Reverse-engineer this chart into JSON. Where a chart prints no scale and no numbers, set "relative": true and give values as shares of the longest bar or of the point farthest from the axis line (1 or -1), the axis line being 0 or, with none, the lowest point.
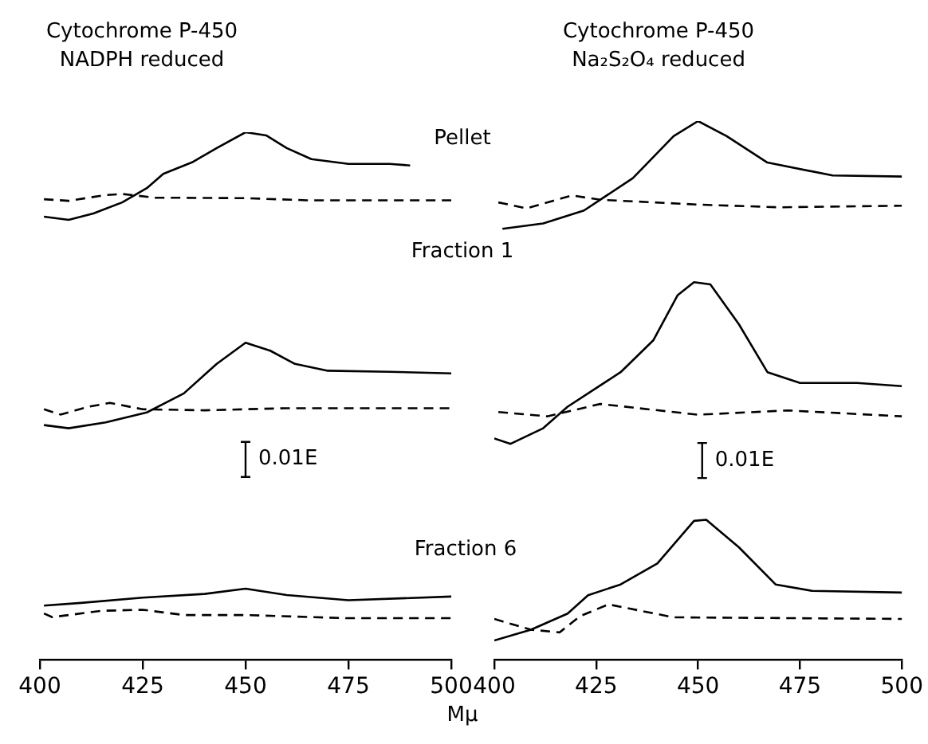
{
  "chart_data": [
    {
      "type": "line",
      "title": "Cytochrome P-450\nNADPH reduced",
      "xlabel": "Mμ",
      "relative": true,
      "xlim": [
        400,
        500
      ],
      "xticks": [
        400,
        425,
        450,
        475,
        500
      ],
      "grid": false,
      "legend": false,
      "marker": "none",
      "tick_labels": "x",
      "annotations": [
        "Pellet",
        "Fraction 1",
        "Fraction 6",
        "0.01E"
      ],
      "series": [
        {
          "color": "#000000",
          "line_style": "solid",
          "x": [
            401,
            407,
            413,
            420,
            426,
            430,
            437,
            443,
            450,
            455,
            460,
            466,
            475,
            485,
            490
          ],
          "values": [
            0.84,
            0.834,
            0.846,
            0.867,
            0.894,
            0.921,
            0.943,
            0.97,
            1.0,
            0.994,
            0.97,
            0.949,
            0.94,
            0.94,
            0.937
          ]
        },
        {
          "color": "#000000",
          "line_style": "dashed",
          "x": [
            401,
            407,
            416,
            420,
            428,
            450,
            465,
            500
          ],
          "values": [
            0.873,
            0.87,
            0.881,
            0.883,
            0.876,
            0.875,
            0.871,
            0.871
          ]
        },
        {
          "color": "#000000",
          "line_style": "solid",
          "x": [
            401,
            407,
            416,
            426,
            435,
            443,
            450,
            456,
            462,
            470,
            485,
            500
          ],
          "values": [
            0.445,
            0.439,
            0.45,
            0.469,
            0.505,
            0.561,
            0.601,
            0.586,
            0.561,
            0.548,
            0.546,
            0.543
          ]
        },
        {
          "color": "#000000",
          "line_style": "dashed",
          "x": [
            401,
            405,
            412,
            417,
            425,
            440,
            460,
            500
          ],
          "values": [
            0.475,
            0.465,
            0.48,
            0.487,
            0.475,
            0.473,
            0.477,
            0.477
          ]
        },
        {
          "color": "#000000",
          "line_style": "solid",
          "x": [
            401,
            410,
            425,
            440,
            450,
            460,
            475,
            500
          ],
          "values": [
            0.103,
            0.108,
            0.118,
            0.125,
            0.135,
            0.123,
            0.113,
            0.12
          ]
        },
        {
          "color": "#000000",
          "line_style": "dashed",
          "x": [
            401,
            403,
            415,
            425,
            435,
            450,
            475,
            500
          ],
          "values": [
            0.088,
            0.081,
            0.093,
            0.095,
            0.085,
            0.085,
            0.079,
            0.079
          ]
        }
      ]
    },
    {
      "type": "line",
      "title": "Cytochrome P-450\nNa₂S₂O₄ reduced",
      "relative": true,
      "xlim": [
        400,
        500
      ],
      "xticks": [
        400,
        425,
        450,
        475,
        500
      ],
      "grid": false,
      "legend": false,
      "marker": "none",
      "tick_labels": "x",
      "annotations": [
        "0.01E"
      ],
      "series": [
        {
          "color": "#000000",
          "line_style": "solid",
          "x": [
            402,
            412,
            422,
            434,
            444,
            450,
            457,
            467,
            483,
            500
          ],
          "values": [
            0.8,
            0.81,
            0.834,
            0.894,
            0.972,
            1.0,
            0.972,
            0.923,
            0.899,
            0.897
          ]
        },
        {
          "color": "#000000",
          "line_style": "dashed",
          "x": [
            401,
            408,
            419,
            426,
            450,
            470,
            500
          ],
          "values": [
            0.849,
            0.838,
            0.862,
            0.854,
            0.845,
            0.84,
            0.843
          ]
        },
        {
          "color": "#000000",
          "line_style": "solid",
          "x": [
            400,
            404,
            412,
            418,
            431,
            439,
            445,
            449,
            453,
            460,
            467,
            475,
            489,
            500
          ],
          "values": [
            0.411,
            0.401,
            0.43,
            0.47,
            0.534,
            0.593,
            0.677,
            0.701,
            0.697,
            0.623,
            0.534,
            0.514,
            0.514,
            0.508
          ]
        },
        {
          "color": "#000000",
          "line_style": "dashed",
          "x": [
            401,
            413,
            426,
            450,
            472,
            500
          ],
          "values": [
            0.46,
            0.452,
            0.475,
            0.455,
            0.463,
            0.452
          ]
        },
        {
          "color": "#000000",
          "line_style": "solid",
          "x": [
            400,
            409,
            418,
            423,
            431,
            440,
            449,
            452,
            460,
            469,
            478,
            500
          ],
          "values": [
            0.036,
            0.056,
            0.086,
            0.12,
            0.14,
            0.179,
            0.258,
            0.26,
            0.209,
            0.14,
            0.128,
            0.125
          ]
        },
        {
          "color": "#000000",
          "line_style": "dashed",
          "x": [
            400,
            409,
            416,
            421,
            428,
            436,
            444,
            500
          ],
          "values": [
            0.076,
            0.056,
            0.051,
            0.081,
            0.103,
            0.091,
            0.079,
            0.076
          ]
        }
      ]
    }
  ]
}
